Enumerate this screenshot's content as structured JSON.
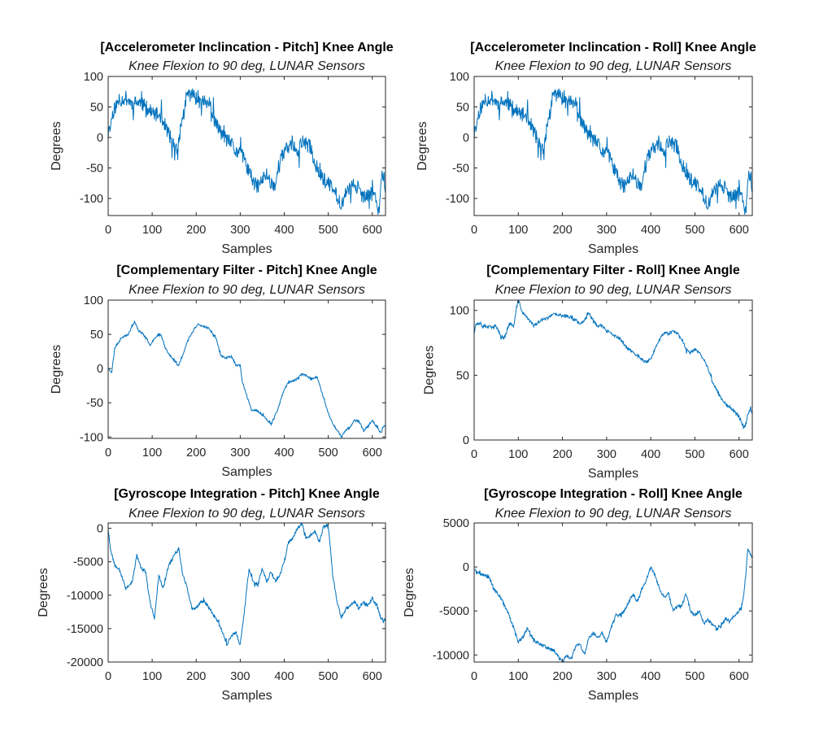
{
  "figure": {
    "background": "#ffffff"
  },
  "chart_data": [
    {
      "id": "acc-pitch",
      "type": "line",
      "title": "[Accelerometer Inclincation - Pitch] Knee Angle",
      "subtitle": "Knee Flexion to 90 deg, LUNAR Sensors",
      "xlabel": "Samples",
      "ylabel": "Degrees",
      "xlim": [
        0,
        630
      ],
      "ylim": [
        -128,
        100
      ],
      "xticks": [
        0,
        100,
        200,
        300,
        400,
        500,
        600
      ],
      "yticks": [
        -100,
        -50,
        0,
        50,
        100
      ],
      "ytick_labels": [
        "-100",
        "-50",
        "0",
        "50",
        "100"
      ],
      "color": "#0072BD",
      "noise": 12,
      "seed": 11,
      "series": [
        {
          "x": [
            0,
            5,
            12,
            25,
            40,
            55,
            70,
            85,
            100,
            120,
            135,
            150,
            158,
            165,
            172,
            180,
            190,
            200,
            215,
            230,
            240,
            250,
            260,
            270,
            280,
            290,
            300,
            310,
            320,
            330,
            340,
            350,
            360,
            370,
            380,
            390,
            400,
            410,
            420,
            430,
            440,
            450,
            460,
            470,
            480,
            490,
            500,
            510,
            520,
            530,
            540,
            550,
            560,
            570,
            580,
            590,
            600,
            610,
            615,
            620,
            625,
            630
          ],
          "y": [
            2,
            20,
            45,
            60,
            65,
            55,
            58,
            50,
            40,
            35,
            10,
            -15,
            -25,
            20,
            40,
            72,
            70,
            68,
            60,
            55,
            30,
            15,
            5,
            -5,
            -10,
            -25,
            -20,
            -40,
            -55,
            -75,
            -80,
            -70,
            -60,
            -75,
            -78,
            -35,
            -25,
            -15,
            -10,
            -30,
            -5,
            -12,
            -15,
            -45,
            -55,
            -70,
            -75,
            -85,
            -95,
            -110,
            -90,
            -85,
            -75,
            -85,
            -100,
            -95,
            -90,
            -100,
            -125,
            -70,
            -60,
            -80
          ]
        }
      ]
    },
    {
      "id": "acc-roll",
      "type": "line",
      "title": "[Accelerometer Inclincation - Roll] Knee Angle",
      "subtitle": "Knee Flexion to 90 deg, LUNAR Sensors",
      "xlabel": "Samples",
      "ylabel": "Degrees",
      "xlim": [
        0,
        630
      ],
      "ylim": [
        -128,
        100
      ],
      "xticks": [
        0,
        100,
        200,
        300,
        400,
        500,
        600
      ],
      "yticks": [
        -100,
        -50,
        0,
        50,
        100
      ],
      "ytick_labels": [
        "-100",
        "-50",
        "0",
        "50",
        "100"
      ],
      "color": "#0072BD",
      "noise": 12,
      "seed": 11,
      "series": [
        {
          "x": [
            0,
            5,
            12,
            25,
            40,
            55,
            70,
            85,
            100,
            120,
            135,
            150,
            158,
            165,
            172,
            180,
            190,
            200,
            215,
            230,
            240,
            250,
            260,
            270,
            280,
            290,
            300,
            310,
            320,
            330,
            340,
            350,
            360,
            370,
            380,
            390,
            400,
            410,
            420,
            430,
            440,
            450,
            460,
            470,
            480,
            490,
            500,
            510,
            520,
            530,
            540,
            550,
            560,
            570,
            580,
            590,
            600,
            610,
            615,
            620,
            625,
            630
          ],
          "y": [
            2,
            20,
            45,
            60,
            65,
            55,
            58,
            50,
            40,
            35,
            10,
            -15,
            -25,
            20,
            40,
            72,
            70,
            68,
            60,
            55,
            30,
            15,
            5,
            -5,
            -10,
            -25,
            -20,
            -40,
            -55,
            -75,
            -80,
            -70,
            -60,
            -75,
            -78,
            -35,
            -25,
            -15,
            -10,
            -30,
            -5,
            -12,
            -15,
            -45,
            -55,
            -70,
            -75,
            -85,
            -95,
            -110,
            -90,
            -85,
            -75,
            -85,
            -100,
            -95,
            -90,
            -100,
            -125,
            -70,
            -60,
            -80
          ]
        }
      ]
    },
    {
      "id": "comp-pitch",
      "type": "line",
      "title": "[Complementary Filter - Pitch] Knee Angle",
      "subtitle": "Knee Flexion to 90 deg, LUNAR Sensors",
      "xlabel": "Samples",
      "ylabel": "Degrees",
      "xlim": [
        0,
        630
      ],
      "ylim": [
        -102,
        100
      ],
      "xticks": [
        0,
        100,
        200,
        300,
        400,
        500,
        600
      ],
      "yticks": [
        -100,
        -50,
        0,
        50,
        100
      ],
      "ytick_labels": [
        "-100",
        "-50",
        "0",
        "50",
        "100"
      ],
      "color": "#0072BD",
      "noise": 1.5,
      "seed": 23,
      "series": [
        {
          "x": [
            0,
            8,
            15,
            30,
            45,
            60,
            70,
            80,
            95,
            110,
            120,
            130,
            145,
            160,
            170,
            180,
            195,
            205,
            215,
            230,
            245,
            255,
            265,
            280,
            290,
            300,
            305,
            315,
            325,
            340,
            355,
            370,
            385,
            400,
            410,
            420,
            430,
            440,
            450,
            460,
            475,
            490,
            500,
            510,
            520,
            530,
            540,
            550,
            560,
            570,
            580,
            590,
            600,
            610,
            620,
            625,
            630
          ],
          "y": [
            0,
            -5,
            30,
            45,
            50,
            68,
            55,
            50,
            35,
            48,
            50,
            30,
            15,
            5,
            20,
            40,
            58,
            65,
            62,
            58,
            45,
            20,
            15,
            18,
            5,
            5,
            -20,
            -40,
            -60,
            -62,
            -70,
            -82,
            -60,
            -30,
            -20,
            -18,
            -15,
            -8,
            -10,
            -15,
            -12,
            -45,
            -65,
            -80,
            -90,
            -100,
            -90,
            -85,
            -75,
            -78,
            -90,
            -85,
            -75,
            -85,
            -95,
            -85,
            -82
          ]
        }
      ]
    },
    {
      "id": "comp-roll",
      "type": "line",
      "title": "[Complementary Filter - Roll] Knee Angle",
      "subtitle": "Knee Flexion to 90 deg, LUNAR Sensors",
      "xlabel": "Samples",
      "ylabel": "Degrees",
      "xlim": [
        0,
        630
      ],
      "ylim": [
        0,
        108
      ],
      "xticks": [
        0,
        100,
        200,
        300,
        400,
        500,
        600
      ],
      "yticks": [
        0,
        50,
        100
      ],
      "ytick_labels": [
        "0",
        "50",
        "100"
      ],
      "color": "#0072BD",
      "noise": 1.2,
      "seed": 37,
      "series": [
        {
          "x": [
            0,
            5,
            20,
            35,
            50,
            60,
            70,
            80,
            90,
            95,
            100,
            110,
            120,
            135,
            150,
            165,
            180,
            200,
            220,
            240,
            250,
            260,
            270,
            280,
            290,
            300,
            310,
            320,
            330,
            340,
            350,
            360,
            370,
            380,
            390,
            400,
            410,
            420,
            430,
            440,
            450,
            460,
            470,
            480,
            490,
            500,
            510,
            520,
            530,
            540,
            550,
            560,
            570,
            580,
            590,
            600,
            610,
            615,
            620,
            625,
            630
          ],
          "y": [
            85,
            90,
            88,
            87,
            88,
            80,
            80,
            90,
            88,
            100,
            108,
            98,
            95,
            88,
            92,
            94,
            97,
            96,
            95,
            90,
            93,
            98,
            92,
            88,
            88,
            84,
            82,
            80,
            78,
            74,
            70,
            68,
            65,
            62,
            60,
            63,
            70,
            78,
            83,
            82,
            84,
            82,
            78,
            70,
            68,
            70,
            68,
            62,
            55,
            45,
            38,
            32,
            28,
            25,
            22,
            18,
            10,
            12,
            20,
            24,
            20
          ]
        }
      ]
    },
    {
      "id": "gyro-pitch",
      "type": "line",
      "title": "[Gyroscope Integration - Pitch] Knee Angle",
      "subtitle": "Knee Flexion to 90 deg, LUNAR Sensors",
      "xlabel": "Samples",
      "ylabel": "Degrees",
      "xlim": [
        0,
        630
      ],
      "ylim": [
        -20000,
        800
      ],
      "xticks": [
        0,
        100,
        200,
        300,
        400,
        500,
        600
      ],
      "yticks": [
        -20000,
        -15000,
        -10000,
        -5000,
        0
      ],
      "ytick_labels": [
        "-20000",
        "-15000",
        "-10000",
        "-5000",
        "0"
      ],
      "color": "#0072BD",
      "noise": 250,
      "seed": 53,
      "series": [
        {
          "x": [
            0,
            5,
            15,
            25,
            40,
            55,
            65,
            75,
            85,
            95,
            105,
            115,
            125,
            135,
            150,
            160,
            170,
            180,
            190,
            200,
            210,
            220,
            230,
            240,
            250,
            260,
            270,
            280,
            290,
            300,
            310,
            320,
            330,
            340,
            350,
            360,
            370,
            380,
            390,
            400,
            410,
            420,
            430,
            440,
            450,
            460,
            470,
            480,
            490,
            500,
            505,
            510,
            520,
            530,
            540,
            550,
            560,
            570,
            580,
            590,
            600,
            610,
            620,
            630
          ],
          "y": [
            0,
            -3000,
            -5500,
            -6000,
            -9000,
            -8000,
            -4000,
            -6000,
            -6500,
            -11000,
            -13500,
            -7000,
            -9000,
            -6000,
            -4000,
            -3000,
            -7000,
            -9000,
            -12000,
            -12000,
            -11000,
            -11000,
            -12000,
            -13000,
            -14000,
            -15500,
            -17500,
            -16000,
            -15500,
            -17500,
            -12000,
            -6000,
            -8000,
            -8500,
            -6000,
            -8000,
            -6500,
            -8000,
            -7000,
            -5000,
            -2000,
            -1500,
            0,
            800,
            -1500,
            -1000,
            -500,
            -2000,
            500,
            200,
            -3000,
            -7000,
            -11000,
            -13500,
            -12000,
            -11500,
            -11000,
            -12000,
            -11000,
            -11500,
            -10500,
            -11500,
            -13500,
            -13800
          ]
        }
      ]
    },
    {
      "id": "gyro-roll",
      "type": "line",
      "title": "[Gyroscope Integration - Roll] Knee Angle",
      "subtitle": "Knee Flexion to 90 deg, LUNAR Sensors",
      "xlabel": "Samples",
      "ylabel": "Degrees",
      "xlim": [
        0,
        630
      ],
      "ylim": [
        -10800,
        5000
      ],
      "xticks": [
        0,
        100,
        200,
        300,
        400,
        500,
        600
      ],
      "yticks": [
        -10000,
        -5000,
        0,
        5000
      ],
      "ytick_labels": [
        "-10000",
        "-5000",
        "0",
        "5000"
      ],
      "color": "#0072BD",
      "noise": 180,
      "seed": 71,
      "series": [
        {
          "x": [
            0,
            5,
            20,
            35,
            45,
            60,
            75,
            90,
            100,
            110,
            120,
            140,
            160,
            180,
            200,
            210,
            220,
            230,
            240,
            250,
            260,
            270,
            280,
            290,
            300,
            310,
            320,
            330,
            340,
            350,
            360,
            370,
            380,
            390,
            400,
            410,
            420,
            430,
            440,
            450,
            460,
            470,
            480,
            490,
            500,
            510,
            520,
            530,
            540,
            550,
            560,
            570,
            580,
            590,
            600,
            605,
            610,
            615,
            620,
            625,
            630
          ],
          "y": [
            -200,
            -600,
            -900,
            -1200,
            -2500,
            -3500,
            -5000,
            -7000,
            -8500,
            -8000,
            -7000,
            -8500,
            -9000,
            -9500,
            -10800,
            -10000,
            -10500,
            -9000,
            -8800,
            -10000,
            -8000,
            -7500,
            -8000,
            -7500,
            -8500,
            -7000,
            -5500,
            -5500,
            -5000,
            -4000,
            -3000,
            -4000,
            -2500,
            -1500,
            0,
            -1000,
            -2500,
            -3500,
            -3000,
            -5000,
            -4500,
            -4500,
            -3000,
            -5000,
            -5500,
            -5000,
            -6500,
            -6000,
            -6500,
            -7000,
            -6500,
            -6000,
            -6000,
            -5500,
            -5000,
            -4500,
            -3500,
            -1000,
            2200,
            1500,
            1200
          ]
        }
      ]
    }
  ]
}
